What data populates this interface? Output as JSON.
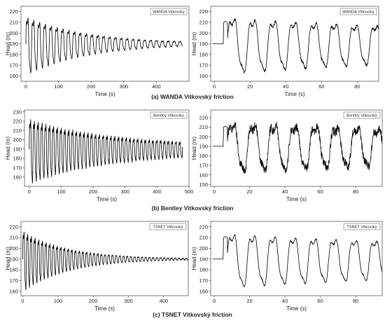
{
  "colors": {
    "trace": "#000000",
    "axis": "#444444",
    "background": "#ffffff"
  },
  "captions": [
    "(a) WANDA Vitkovský friction",
    "(b) Bentley Vitkovský friction",
    "(c) TSNET Vitkovský friction"
  ],
  "chart_data": [
    {
      "type": "line",
      "legend": "WANDA Vitkovský",
      "xlabel": "Time (s)",
      "ylabel": "Head (m)",
      "xlim": [
        -15,
        500
      ],
      "ylim": [
        155,
        225
      ],
      "xticks": [
        0,
        100,
        200,
        300,
        400
      ],
      "yticks": [
        160,
        170,
        180,
        190,
        200,
        210,
        220
      ],
      "steady_head": 190,
      "t_start": 0,
      "t_end": 480,
      "initial_amplitude": 32,
      "decay_time": 190,
      "period": 18,
      "noise": 0.4,
      "series": []
    },
    {
      "type": "line",
      "legend": "WANDA Vitkovský",
      "xlabel": "Time (s)",
      "ylabel": "Head (m)",
      "xlim": [
        -2,
        92
      ],
      "ylim": [
        155,
        225
      ],
      "xticks": [
        0,
        20,
        40,
        60,
        80
      ],
      "yticks": [
        160,
        170,
        180,
        190,
        200,
        210,
        220
      ],
      "steady_head": 190,
      "t_start": 5,
      "t_end": 92,
      "initial_amplitude": 30,
      "decay_time": 240,
      "period": 11.4,
      "noise": 1.2,
      "series": []
    },
    {
      "type": "line",
      "legend": "Bentley Vitkovský",
      "xlabel": "Time (s)",
      "ylabel": "Head (m)",
      "xlim": [
        -15,
        500
      ],
      "ylim": [
        150,
        232
      ],
      "xticks": [
        0,
        100,
        200,
        300,
        400,
        500
      ],
      "yticks": [
        160,
        170,
        180,
        190,
        200,
        210,
        220,
        230
      ],
      "steady_head": 190,
      "t_start": 0,
      "t_end": 480,
      "initial_amplitude": 36,
      "decay_time": 260,
      "period": 12,
      "noise": 1.0,
      "floor_amplitude": 4,
      "series": []
    },
    {
      "type": "line",
      "legend": "Bentley Vitkovský",
      "xlabel": "Time (s)",
      "ylabel": "Head (m)",
      "xlim": [
        -2,
        95
      ],
      "ylim": [
        148,
        228
      ],
      "xticks": [
        0,
        20,
        40,
        60,
        80
      ],
      "yticks": [
        150,
        160,
        170,
        180,
        190,
        200,
        210,
        220
      ],
      "steady_head": 190,
      "t_start": 5,
      "t_end": 95,
      "initial_amplitude": 30,
      "decay_time": 300,
      "period": 11.7,
      "noise": 4.5,
      "series": []
    },
    {
      "type": "line",
      "legend": "TSNET Vitkovský",
      "xlabel": "Time (s)",
      "ylabel": "Head (m)",
      "xlim": [
        -5,
        470
      ],
      "ylim": [
        156,
        225
      ],
      "xticks": [
        0,
        100,
        200,
        300,
        400
      ],
      "yticks": [
        160,
        170,
        180,
        190,
        200,
        210,
        220
      ],
      "steady_head": 190,
      "t_start": 0,
      "t_end": 470,
      "initial_amplitude": 33,
      "decay_time": 130,
      "period": 10.5,
      "noise": 0.3,
      "series": []
    },
    {
      "type": "line",
      "legend": "TSNET Vitkovský",
      "xlabel": "Time (s)",
      "ylabel": "Head (m)",
      "xlim": [
        -2,
        95
      ],
      "ylim": [
        156,
        225
      ],
      "xticks": [
        0,
        20,
        40,
        60,
        80
      ],
      "yticks": [
        160,
        170,
        180,
        190,
        200,
        210,
        220
      ],
      "steady_head": 190,
      "t_start": 5,
      "t_end": 95,
      "initial_amplitude": 29,
      "decay_time": 260,
      "period": 11.5,
      "noise": 0.8,
      "series": []
    }
  ]
}
